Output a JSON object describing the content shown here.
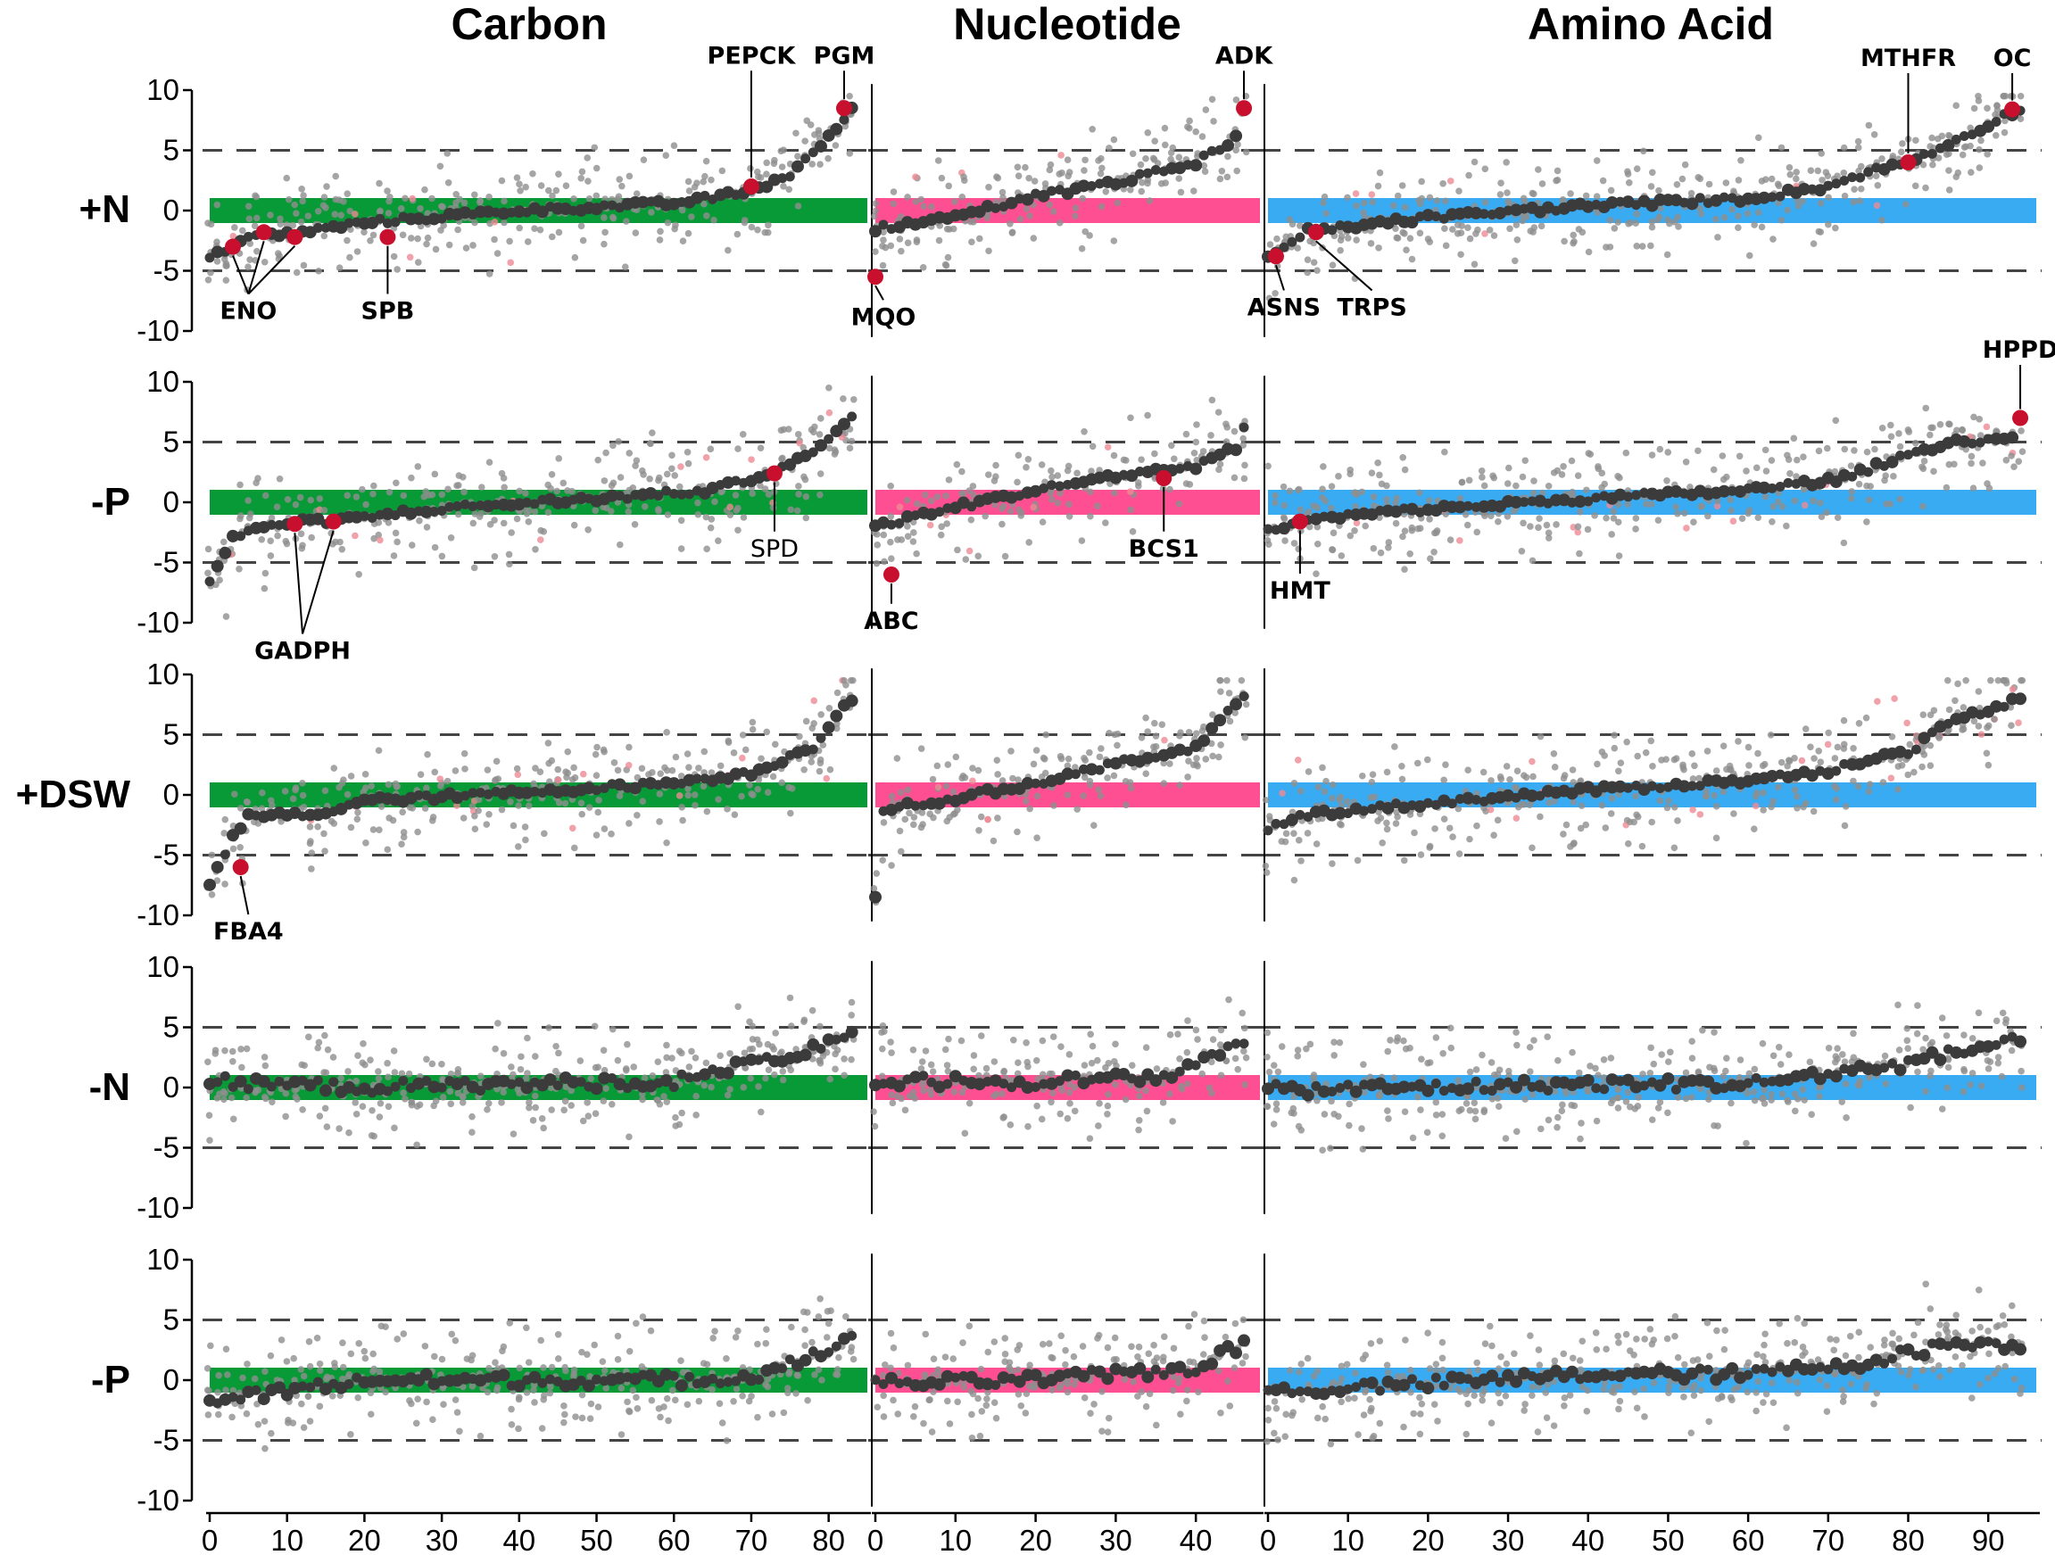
{
  "columns": [
    {
      "title": "Carbon",
      "color": "#079a36"
    },
    {
      "title": "Nucleotide",
      "color": "#ff4f93"
    },
    {
      "title": "Amino Acid",
      "color": "#38abf3"
    }
  ],
  "rows": [
    {
      "label": "+N",
      "highlight": true
    },
    {
      "label": "-P",
      "highlight": true
    },
    {
      "label": "+DSW",
      "highlight": true
    },
    {
      "label": "-N",
      "highlight": false
    },
    {
      "label": "-P",
      "highlight": false
    }
  ],
  "colors": {
    "point": "#3b3b3b",
    "point_light": "#8f8f8f",
    "highlight": "#c8102e",
    "highlight_light": "#ee8a93"
  },
  "chart_data": {
    "type": "scatter",
    "y_ticks": [
      "10",
      "5",
      "0",
      "-5",
      "-10"
    ],
    "ylim": [
      -10,
      10
    ],
    "dashed_reference_lines": [
      5,
      -5
    ],
    "panels": [
      {
        "column": "Carbon",
        "x_ticks": [
          "0",
          "10",
          "20",
          "30",
          "40",
          "50",
          "60",
          "70",
          "80"
        ],
        "xlim": [
          0,
          85
        ],
        "n": 84
      },
      {
        "column": "Nucleotide",
        "x_ticks": [
          "0",
          "10",
          "20",
          "30",
          "40"
        ],
        "xlim": [
          0,
          48
        ],
        "n": 47
      },
      {
        "column": "Amino Acid",
        "x_ticks": [
          "0",
          "10",
          "20",
          "30",
          "40",
          "50",
          "60",
          "70",
          "80",
          "90"
        ],
        "xlim": [
          0,
          96
        ],
        "n": 95
      }
    ],
    "row_trends": [
      {
        "row": "+N",
        "carbon": [
          [
            0,
            -3.8
          ],
          [
            3,
            -3.0
          ],
          [
            6,
            -2.0
          ],
          [
            10,
            -2.0
          ],
          [
            20,
            -1.0
          ],
          [
            40,
            0.0
          ],
          [
            60,
            0.6
          ],
          [
            70,
            1.6
          ],
          [
            75,
            3.0
          ],
          [
            80,
            6.0
          ],
          [
            83,
            8.5
          ]
        ],
        "nucleotide": [
          [
            0,
            -1.5
          ],
          [
            10,
            -0.5
          ],
          [
            20,
            1.2
          ],
          [
            30,
            2.3
          ],
          [
            40,
            4.0
          ],
          [
            45,
            6.0
          ],
          [
            46,
            8.5
          ]
        ],
        "amino": [
          [
            0,
            -4.0
          ],
          [
            5,
            -1.7
          ],
          [
            20,
            -0.6
          ],
          [
            40,
            0.4
          ],
          [
            60,
            1.0
          ],
          [
            70,
            2.0
          ],
          [
            75,
            3.2
          ],
          [
            80,
            4.0
          ],
          [
            85,
            5.5
          ],
          [
            94,
            8.5
          ]
        ]
      },
      {
        "row": "-P",
        "carbon": [
          [
            0,
            -6.5
          ],
          [
            3,
            -3.0
          ],
          [
            8,
            -1.8
          ],
          [
            17,
            -1.5
          ],
          [
            30,
            -0.5
          ],
          [
            50,
            0.3
          ],
          [
            65,
            1.0
          ],
          [
            72,
            2.4
          ],
          [
            78,
            4.0
          ],
          [
            82,
            6.5
          ],
          [
            83,
            7.2
          ]
        ],
        "nucleotide": [
          [
            0,
            -2.0
          ],
          [
            10,
            -0.4
          ],
          [
            20,
            1.0
          ],
          [
            30,
            2.2
          ],
          [
            40,
            3.0
          ],
          [
            45,
            4.5
          ],
          [
            46,
            6.0
          ]
        ],
        "amino": [
          [
            0,
            -2.4
          ],
          [
            5,
            -1.5
          ],
          [
            15,
            -0.8
          ],
          [
            40,
            0.3
          ],
          [
            60,
            1.0
          ],
          [
            72,
            2.0
          ],
          [
            78,
            3.5
          ],
          [
            85,
            5.0
          ],
          [
            93,
            5.3
          ],
          [
            94,
            7.0
          ]
        ]
      },
      {
        "row": "+DSW",
        "carbon": [
          [
            0,
            -7.5
          ],
          [
            3,
            -3.5
          ],
          [
            5,
            -1.8
          ],
          [
            15,
            -1.5
          ],
          [
            20,
            -0.5
          ],
          [
            40,
            0.2
          ],
          [
            60,
            1.0
          ],
          [
            70,
            1.8
          ],
          [
            78,
            4.0
          ],
          [
            82,
            7.5
          ],
          [
            84,
            8.2
          ]
        ],
        "nucleotide": [
          [
            0,
            -8.3
          ],
          [
            1,
            -1.2
          ],
          [
            10,
            -0.3
          ],
          [
            20,
            1.0
          ],
          [
            30,
            2.6
          ],
          [
            40,
            4.0
          ],
          [
            46,
            8.2
          ]
        ],
        "amino": [
          [
            0,
            -2.8
          ],
          [
            5,
            -1.6
          ],
          [
            20,
            -0.7
          ],
          [
            40,
            0.4
          ],
          [
            60,
            1.2
          ],
          [
            70,
            2.0
          ],
          [
            75,
            3.0
          ],
          [
            80,
            3.5
          ],
          [
            85,
            6.0
          ],
          [
            94,
            8.0
          ]
        ]
      },
      {
        "row": "-N",
        "carbon": [
          [
            0,
            0.5
          ],
          [
            20,
            0.0
          ],
          [
            40,
            0.3
          ],
          [
            60,
            0.5
          ],
          [
            70,
            2.0
          ],
          [
            80,
            3.5
          ],
          [
            84,
            4.3
          ]
        ],
        "nucleotide": [
          [
            0,
            0.5
          ],
          [
            20,
            0.5
          ],
          [
            35,
            0.8
          ],
          [
            40,
            2.0
          ],
          [
            46,
            4.0
          ]
        ],
        "amino": [
          [
            0,
            -0.2
          ],
          [
            20,
            0.0
          ],
          [
            40,
            0.3
          ],
          [
            60,
            0.3
          ],
          [
            80,
            2.0
          ],
          [
            90,
            3.5
          ],
          [
            94,
            3.8
          ]
        ]
      },
      {
        "row": "-P",
        "carbon": [
          [
            0,
            -1.8
          ],
          [
            20,
            0.0
          ],
          [
            40,
            0.0
          ],
          [
            60,
            0.0
          ],
          [
            70,
            0.3
          ],
          [
            84,
            3.5
          ]
        ],
        "nucleotide": [
          [
            0,
            -0.3
          ],
          [
            20,
            0.0
          ],
          [
            40,
            1.0
          ],
          [
            46,
            3.0
          ]
        ],
        "amino": [
          [
            0,
            -1.0
          ],
          [
            20,
            -0.3
          ],
          [
            40,
            0.5
          ],
          [
            60,
            0.5
          ],
          [
            75,
            1.5
          ],
          [
            85,
            3.0
          ],
          [
            94,
            3.0
          ]
        ]
      }
    ],
    "annotations": [
      {
        "row": 0,
        "col": 0,
        "text": "ENO",
        "x": 5,
        "y": -9.0,
        "style": "bold",
        "targets": [
          [
            3,
            -3.0
          ],
          [
            7,
            -1.8
          ],
          [
            11,
            -2.2
          ]
        ]
      },
      {
        "row": 0,
        "col": 0,
        "text": "SPB",
        "x": 23,
        "y": -9.0,
        "style": "bold",
        "targets": [
          [
            23,
            -2.2
          ]
        ]
      },
      {
        "row": 0,
        "col": 0,
        "text": "PEPCK",
        "x": 70,
        "y": 12.2,
        "style": "bold",
        "targets": [
          [
            70,
            2.0
          ]
        ]
      },
      {
        "row": 0,
        "col": 0,
        "text": "PGM",
        "x": 82,
        "y": 12.2,
        "style": "bold",
        "targets": [
          [
            82,
            8.5
          ]
        ]
      },
      {
        "row": 0,
        "col": 1,
        "text": "ADK",
        "x": 46,
        "y": 12.2,
        "style": "bold",
        "targets": [
          [
            46,
            8.5
          ]
        ]
      },
      {
        "row": 0,
        "col": 1,
        "text": "MQO",
        "x": 1,
        "y": -9.5,
        "style": "bold",
        "targets": [
          [
            0,
            -5.5
          ]
        ]
      },
      {
        "row": 0,
        "col": 2,
        "text": "ASNS",
        "x": 2,
        "y": -8.7,
        "style": "bold",
        "targets": [
          [
            1,
            -3.8
          ]
        ]
      },
      {
        "row": 0,
        "col": 2,
        "text": "TRPS",
        "x": 13,
        "y": -8.7,
        "style": "bold",
        "targets": [
          [
            6,
            -1.8
          ]
        ]
      },
      {
        "row": 0,
        "col": 2,
        "text": "MTHFR",
        "x": 80,
        "y": 12.0,
        "style": "bold",
        "targets": [
          [
            80,
            4.0
          ]
        ]
      },
      {
        "row": 0,
        "col": 2,
        "text": "OC",
        "x": 93,
        "y": 12.0,
        "style": "bold",
        "targets": [
          [
            93,
            8.4
          ]
        ]
      },
      {
        "row": 1,
        "col": 0,
        "text": "GADPH",
        "x": 12,
        "y": -13.0,
        "style": "bold",
        "targets": [
          [
            11,
            -1.8
          ],
          [
            16,
            -1.6
          ]
        ]
      },
      {
        "row": 1,
        "col": 0,
        "text": "SPD",
        "x": 73,
        "y": -4.5,
        "style": "plain",
        "targets": [
          [
            73,
            2.4
          ]
        ]
      },
      {
        "row": 1,
        "col": 1,
        "text": "ABC",
        "x": 2,
        "y": -10.5,
        "style": "bold",
        "targets": [
          [
            2,
            -6.0
          ]
        ]
      },
      {
        "row": 1,
        "col": 1,
        "text": "BCS1",
        "x": 36,
        "y": -4.5,
        "style": "bold",
        "targets": [
          [
            36,
            2.0
          ]
        ]
      },
      {
        "row": 1,
        "col": 2,
        "text": "HMT",
        "x": 4,
        "y": -8.0,
        "style": "bold",
        "targets": [
          [
            4,
            -1.6
          ]
        ]
      },
      {
        "row": 1,
        "col": 2,
        "text": "HPPD",
        "x": 94,
        "y": 12.0,
        "style": "bold",
        "targets": [
          [
            94,
            7.0
          ]
        ]
      },
      {
        "row": 2,
        "col": 0,
        "text": "FBA4",
        "x": 5,
        "y": -12.0,
        "style": "bold",
        "targets": [
          [
            4,
            -6.0
          ]
        ]
      }
    ]
  }
}
